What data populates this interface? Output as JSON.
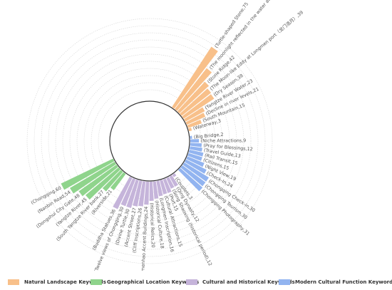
{
  "chart_data": {
    "type": "bar",
    "layout": "radial",
    "grid": true,
    "legend_position": "bottom",
    "label_format": "{label},{value}",
    "series": [
      {
        "name": "Natural Landscape Keywords",
        "color": "#F8C08A",
        "items": [
          {
            "label": "(Waterway",
            "value": 3
          },
          {
            "label": "(South Mountain",
            "value": 15
          },
          {
            "label": "(Decline in river levels",
            "value": 21
          },
          {
            "label": "(Yangtze River Water",
            "value": 23
          },
          {
            "label": "(Dry Season",
            "value": 38
          },
          {
            "label": "(The Moon-like Eddy at Longmen port（龙门浩月）",
            "value": 39
          },
          {
            "label": "(Stone Ridge",
            "value": 42
          },
          {
            "label": "(The moonlight reflected in the water at Longmen Port（龙门皓月）",
            "value": 54
          },
          {
            "label": "(Turtle-shaped Stone",
            "value": 75
          }
        ]
      },
      {
        "name": "Modern Cultural Function Keywords",
        "color": "#92B4F0",
        "items": [
          {
            "label": "(Big Bridge",
            "value": 2
          },
          {
            "label": "(Niche Attractions",
            "value": 9
          },
          {
            "label": "(Pray for Blessings",
            "value": 12
          },
          {
            "label": "(Travel Guide",
            "value": 13
          },
          {
            "label": "(Rail Transit",
            "value": 15
          },
          {
            "label": "(Citizens",
            "value": 15
          },
          {
            "label": "(Night View",
            "value": 19
          },
          {
            "label": "(Check-In",
            "value": 24
          },
          {
            "label": "(Chongqing Check-in",
            "value": 30
          },
          {
            "label": "(Chongqing Tourism",
            "value": 30
          },
          {
            "label": "(Chongqing Photography",
            "value": 31
          }
        ]
      },
      {
        "name": "Cultural and Historical Keywords",
        "color": "#C5B4DA",
        "items": [
          {
            "label": "(Couplets",
            "value": 3
          },
          {
            "label": "(Qing Dynasty",
            "value": 12
          },
          {
            "label": "(Song Shaoxing (historical period)",
            "value": 12
          },
          {
            "label": "(Port",
            "value": 15
          },
          {
            "label": "(Cultural Attractions",
            "value": 15
          },
          {
            "label": "(Longmen Inscription",
            "value": 16
          },
          {
            "label": "(Historical Culture",
            "value": 18
          },
          {
            "label": "(Historical Relics",
            "value": 20
          },
          {
            "label": "(Longmenhao Accent Buildings",
            "value": 24
          },
          {
            "label": "(Cliff Inscriptions",
            "value": 26
          },
          {
            "label": "(Accent Street",
            "value": 27
          },
          {
            "label": "(Divine Turtle",
            "value": 30
          },
          {
            "label": "(Twelve views of Chongqing",
            "value": 30
          },
          {
            "label": "(Buddha Statues",
            "value": 36
          }
        ]
      },
      {
        "name": "Geographical Location Keywords",
        "color": "#8FD48C",
        "items": [
          {
            "label": "(Riverside",
            "value": 21
          },
          {
            "label": "(South Yangtze River bank",
            "value": 27
          },
          {
            "label": "(Yangtze River",
            "value": 45
          },
          {
            "label": "(Dongshui City Gate",
            "value": 48
          },
          {
            "label": "(Nanbin Road",
            "value": 54
          },
          {
            "label": "(Chongqing",
            "value": 60
          }
        ]
      }
    ],
    "legend": [
      {
        "label": "Natural Landscape Keywords",
        "color": "#F8C08A"
      },
      {
        "label": "Geographical Location Keywords",
        "color": "#8FD48C"
      },
      {
        "label": "Cultural and Historical Keywords",
        "color": "#C5B4DA"
      },
      {
        "label": "Modern Cultural Function Keywords",
        "color": "#92B4F0"
      }
    ]
  }
}
